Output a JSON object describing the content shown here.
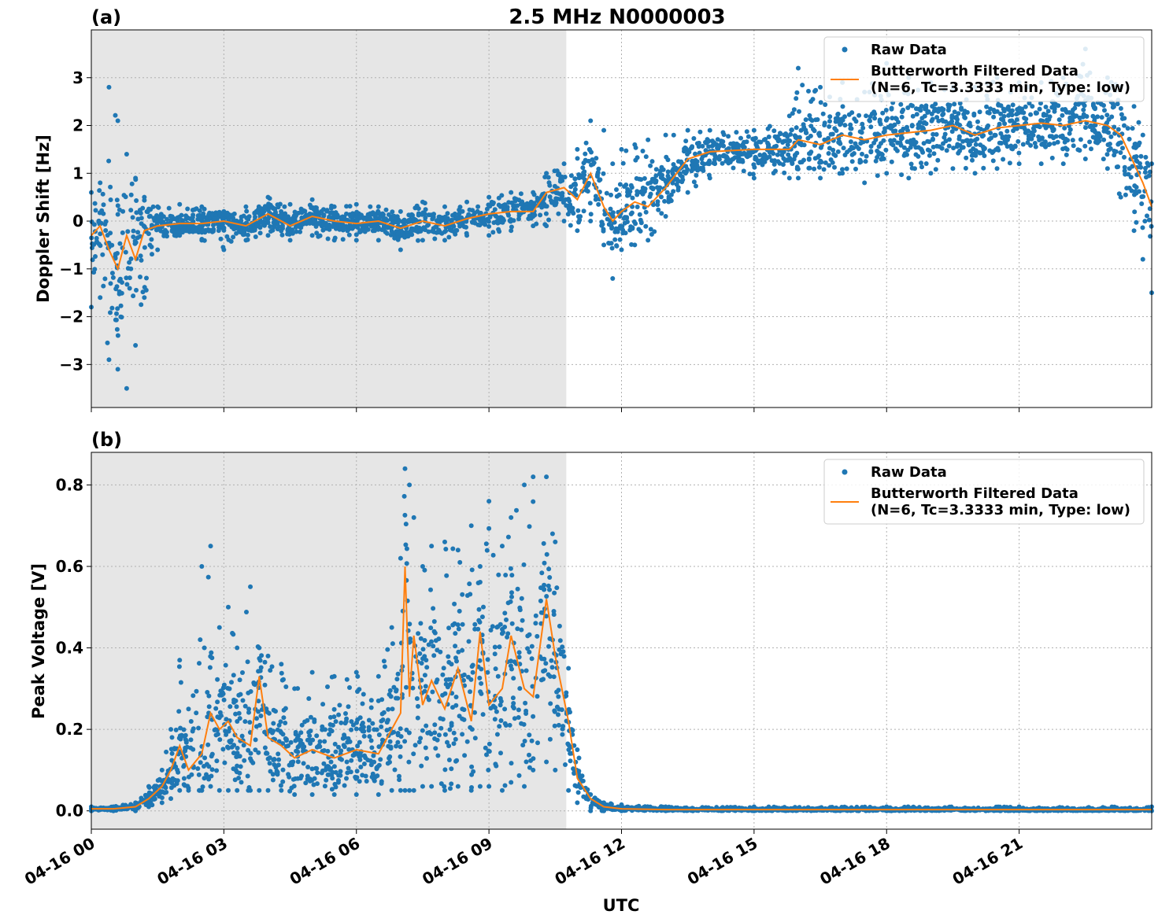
{
  "figure": {
    "title": "2.5 MHz N0000003",
    "xlabel": "UTC",
    "x_tick_labels": [
      "04-16 00",
      "04-16 03",
      "04-16 06",
      "04-16 09",
      "04-16 12",
      "04-16 15",
      "04-16 18",
      "04-16 21"
    ],
    "shaded_interval_hours": [
      0,
      10.75
    ],
    "colors": {
      "raw": "#1f77b4",
      "filtered": "#ff7f0e",
      "shade": "#e6e6e6",
      "grid": "#b0b0b0"
    }
  },
  "legend": {
    "raw": "Raw Data",
    "filtered_line1": "Butterworth Filtered Data",
    "filtered_line2": "(N=6, Tc=3.3333 min, Type: low)"
  },
  "chart_data": [
    {
      "type": "line",
      "panel_label": "(a)",
      "ylabel": "Doppler Shift [Hz]",
      "x_unit": "hours UTC on 04-16",
      "xlim": [
        0,
        24
      ],
      "ylim": [
        -3.9,
        4.0
      ],
      "y_ticks": [
        -3,
        -2,
        -1,
        0,
        1,
        2,
        3
      ],
      "y_tick_labels": [
        "−3",
        "−2",
        "−1",
        "0",
        "1",
        "2",
        "3"
      ],
      "grid": true,
      "legend_position": "top-right",
      "series": [
        {
          "name": "Butterworth Filtered Data (N=6, Tc=3.3333 min, Type: low)",
          "style": "line",
          "x": [
            0,
            0.2,
            0.4,
            0.6,
            0.8,
            1.0,
            1.2,
            1.5,
            2,
            2.5,
            3,
            3.5,
            4,
            4.5,
            5,
            5.5,
            6,
            6.5,
            7,
            7.5,
            8,
            8.5,
            9,
            9.5,
            10,
            10.3,
            10.7,
            11,
            11.3,
            11.6,
            11.8,
            12,
            12.3,
            12.6,
            13,
            13.5,
            14,
            15,
            15.8,
            16,
            16.5,
            17,
            17.5,
            18,
            18.5,
            19,
            19.5,
            20,
            20.5,
            21,
            21.5,
            22,
            22.5,
            23,
            23.3,
            23.6,
            23.8,
            24
          ],
          "y": [
            -0.3,
            -0.1,
            -0.6,
            -1.0,
            -0.3,
            -0.8,
            -0.2,
            -0.1,
            -0.05,
            -0.05,
            0.0,
            -0.1,
            0.15,
            -0.1,
            0.1,
            0.0,
            -0.05,
            0.0,
            -0.15,
            0.0,
            -0.1,
            0.05,
            0.15,
            0.2,
            0.2,
            0.6,
            0.7,
            0.45,
            1.0,
            0.3,
            0.0,
            0.2,
            0.4,
            0.3,
            0.7,
            1.3,
            1.45,
            1.5,
            1.5,
            1.7,
            1.6,
            1.8,
            1.7,
            1.8,
            1.85,
            1.9,
            2.0,
            1.8,
            1.95,
            2.0,
            2.05,
            2.0,
            2.1,
            2.0,
            1.8,
            1.2,
            0.8,
            0.3
          ]
        },
        {
          "name": "Raw Data",
          "style": "markers",
          "x": [
            0,
            0.2,
            0.4,
            0.6,
            0.8,
            1.0,
            1.2,
            1.5,
            2,
            2.5,
            3,
            3.5,
            4,
            4.5,
            5,
            5.5,
            6,
            6.5,
            7,
            7.5,
            8,
            8.5,
            9,
            9.5,
            10,
            10.3,
            10.7,
            11,
            11.3,
            11.6,
            11.8,
            12,
            12.3,
            12.6,
            13,
            13.5,
            14,
            15,
            15.8,
            16,
            16.5,
            17,
            17.5,
            18,
            18.5,
            19,
            19.5,
            20,
            20.5,
            21,
            21.5,
            22,
            22.5,
            23,
            23.3,
            23.6,
            23.8,
            24
          ],
          "y_min": [
            -1.8,
            -1.6,
            -2.9,
            -3.1,
            -3.5,
            -2.6,
            -1.6,
            -0.6,
            -0.3,
            -0.4,
            -0.6,
            -0.4,
            -0.3,
            -0.4,
            -0.3,
            -0.4,
            -0.4,
            -0.4,
            -0.6,
            -0.4,
            -0.4,
            -0.3,
            -0.3,
            -0.2,
            -0.1,
            -0.1,
            0.0,
            -0.2,
            0.0,
            -0.5,
            -1.2,
            -0.6,
            -0.5,
            -0.4,
            0.1,
            0.6,
            0.9,
            0.9,
            0.9,
            0.9,
            0.9,
            1.0,
            0.8,
            1.0,
            0.9,
            1.0,
            1.1,
            1.0,
            1.1,
            1.2,
            1.2,
            1.2,
            1.3,
            1.1,
            0.5,
            -0.2,
            -0.8,
            -1.5
          ],
          "y_max": [
            0.6,
            0.8,
            2.8,
            2.1,
            1.4,
            0.9,
            0.5,
            0.3,
            0.35,
            0.3,
            0.2,
            0.3,
            0.5,
            0.35,
            0.45,
            0.3,
            0.35,
            0.3,
            0.2,
            0.4,
            0.3,
            0.4,
            0.5,
            0.6,
            0.6,
            1.0,
            1.2,
            1.5,
            2.1,
            1.9,
            1.2,
            1.5,
            1.6,
            1.7,
            1.8,
            1.9,
            1.9,
            1.9,
            2.2,
            3.2,
            2.8,
            2.9,
            2.7,
            3.3,
            3.0,
            2.9,
            2.8,
            2.8,
            3.0,
            2.9,
            2.9,
            3.0,
            3.6,
            3.0,
            2.8,
            2.4,
            1.8,
            1.2
          ]
        }
      ]
    },
    {
      "type": "line",
      "panel_label": "(b)",
      "ylabel": "Peak Voltage [V]",
      "x_unit": "hours UTC on 04-16",
      "xlim": [
        0,
        24
      ],
      "ylim": [
        -0.045,
        0.88
      ],
      "y_ticks": [
        0.0,
        0.2,
        0.4,
        0.6,
        0.8
      ],
      "y_tick_labels": [
        "0.0",
        "0.2",
        "0.4",
        "0.6",
        "0.8"
      ],
      "grid": true,
      "legend_position": "top-right",
      "series": [
        {
          "name": "Butterworth Filtered Data (N=6, Tc=3.3333 min, Type: low)",
          "style": "line",
          "x": [
            0,
            0.5,
            1.0,
            1.3,
            1.6,
            1.8,
            2.0,
            2.2,
            2.5,
            2.7,
            2.9,
            3.1,
            3.3,
            3.6,
            3.8,
            4.0,
            4.3,
            4.6,
            5.0,
            5.5,
            6.0,
            6.5,
            6.8,
            7.0,
            7.1,
            7.2,
            7.3,
            7.5,
            7.7,
            8.0,
            8.3,
            8.6,
            8.8,
            9.0,
            9.3,
            9.5,
            9.8,
            10.0,
            10.3,
            10.5,
            10.8,
            11.0,
            11.3,
            11.6,
            12,
            13,
            15,
            18,
            21,
            24
          ],
          "y": [
            0.005,
            0.005,
            0.01,
            0.03,
            0.06,
            0.1,
            0.16,
            0.1,
            0.14,
            0.24,
            0.2,
            0.22,
            0.18,
            0.16,
            0.33,
            0.18,
            0.16,
            0.13,
            0.15,
            0.13,
            0.15,
            0.14,
            0.2,
            0.24,
            0.6,
            0.28,
            0.43,
            0.26,
            0.32,
            0.25,
            0.35,
            0.22,
            0.44,
            0.26,
            0.3,
            0.43,
            0.3,
            0.28,
            0.52,
            0.38,
            0.22,
            0.08,
            0.03,
            0.01,
            0.005,
            0.003,
            0.003,
            0.003,
            0.003,
            0.003
          ]
        },
        {
          "name": "Raw Data",
          "style": "markers",
          "x": [
            0,
            0.5,
            1.0,
            1.3,
            1.6,
            1.8,
            2.0,
            2.2,
            2.5,
            2.7,
            2.9,
            3.1,
            3.3,
            3.6,
            3.8,
            4.0,
            4.3,
            4.6,
            5.0,
            5.5,
            6.0,
            6.5,
            6.8,
            7.0,
            7.1,
            7.2,
            7.3,
            7.5,
            7.7,
            8.0,
            8.3,
            8.6,
            8.8,
            9.0,
            9.3,
            9.5,
            9.8,
            10.0,
            10.3,
            10.5,
            10.8,
            11.0,
            11.3,
            11.6,
            12,
            13,
            15,
            18,
            21,
            24
          ],
          "y_min": [
            0.0,
            0.0,
            0.0,
            0.01,
            0.02,
            0.03,
            0.05,
            0.05,
            0.05,
            0.06,
            0.05,
            0.05,
            0.05,
            0.05,
            0.05,
            0.05,
            0.05,
            0.04,
            0.04,
            0.04,
            0.04,
            0.04,
            0.05,
            0.05,
            0.05,
            0.05,
            0.05,
            0.06,
            0.06,
            0.05,
            0.06,
            0.05,
            0.06,
            0.06,
            0.05,
            0.07,
            0.06,
            0.1,
            0.12,
            0.1,
            0.05,
            0.02,
            0.0,
            0.0,
            0.0,
            0.0,
            0.0,
            0.0,
            0.0,
            0.0
          ],
          "y_max": [
            0.01,
            0.01,
            0.02,
            0.06,
            0.1,
            0.2,
            0.37,
            0.25,
            0.6,
            0.65,
            0.45,
            0.5,
            0.4,
            0.55,
            0.4,
            0.38,
            0.36,
            0.3,
            0.34,
            0.33,
            0.34,
            0.33,
            0.45,
            0.62,
            0.84,
            0.8,
            0.72,
            0.6,
            0.65,
            0.66,
            0.64,
            0.7,
            0.6,
            0.76,
            0.65,
            0.72,
            0.8,
            0.82,
            0.82,
            0.66,
            0.35,
            0.15,
            0.04,
            0.02,
            0.015,
            0.01,
            0.01,
            0.01,
            0.01,
            0.01
          ]
        }
      ]
    }
  ]
}
